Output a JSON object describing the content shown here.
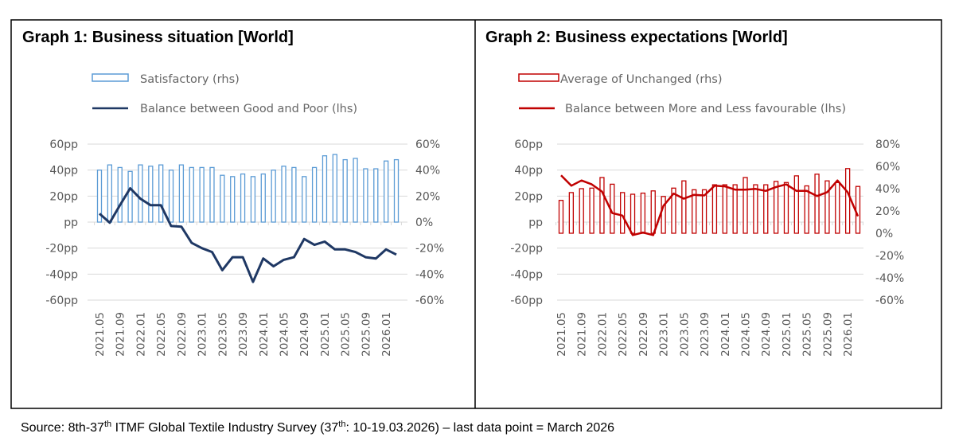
{
  "source": {
    "prefix": "Source: 8th-37",
    "sup1": "th",
    "middle": " ITMF Global Textile Industry Survey (37",
    "sup2": "th",
    "suffix": ": 10-19.03.2026) – last data point = March 2026"
  },
  "chart_data": [
    {
      "type": "bar+line",
      "title": "Graph 1: Business situation [World]",
      "legend_placement": "top",
      "x_tick_labels": [
        "2021.05",
        "2021.09",
        "2022.01",
        "2022.05",
        "2022.09",
        "2023.01",
        "2023.05",
        "2023.09",
        "2024.01",
        "2024.05",
        "2024.09",
        "2025.01",
        "2025.05",
        "2025.09",
        "2026.01"
      ],
      "left_axis": {
        "ylim": [
          -60,
          60
        ],
        "ticks": [
          "60pp",
          "40pp",
          "20pp",
          "pp",
          "-20pp",
          "-40pp",
          "-60pp"
        ],
        "tick_values": [
          60,
          40,
          20,
          0,
          -20,
          -40,
          -60
        ]
      },
      "right_axis": {
        "ylim": [
          -60,
          60
        ],
        "ticks": [
          "60%",
          "40%",
          "20%",
          "0%",
          "-20%",
          "-40%",
          "-60%"
        ],
        "tick_values": [
          60,
          40,
          20,
          0,
          -20,
          -40,
          -60
        ]
      },
      "grid": true,
      "series": [
        {
          "name": "Satisfactory (rhs)",
          "kind": "bar",
          "axis": "right",
          "color": "#5b9bd5",
          "values": [
            40,
            44,
            42,
            39,
            44,
            43,
            44,
            40,
            44,
            42,
            42,
            42,
            36,
            35,
            37,
            35,
            37,
            40,
            43,
            42,
            35,
            42,
            51,
            52,
            48,
            49,
            41,
            41,
            47,
            48
          ]
        },
        {
          "name": "Balance between Good and Poor (lhs)",
          "kind": "line",
          "axis": "left",
          "color": "#1f3864",
          "values": [
            6.5,
            -0.5,
            13,
            26,
            18,
            13,
            13,
            -3,
            -3.5,
            -16,
            -20,
            -23,
            -37,
            -27,
            -27,
            -46,
            -28,
            -34,
            -29,
            -27,
            -13,
            -17.5,
            -15,
            -21,
            -21,
            -23,
            -27,
            -28,
            -21,
            -25
          ]
        }
      ]
    },
    {
      "type": "bar+line",
      "title": "Graph 2: Business expectations [World]",
      "legend_placement": "top",
      "x_tick_labels": [
        "2021.05",
        "2021.09",
        "2022.01",
        "2022.05",
        "2022.09",
        "2023.01",
        "2023.05",
        "2023.09",
        "2024.01",
        "2024.05",
        "2024.09",
        "2025.01",
        "2025.05",
        "2025.09",
        "2026.01"
      ],
      "left_axis": {
        "ylim": [
          -60,
          60
        ],
        "ticks": [
          "60pp",
          "40pp",
          "20pp",
          "pp",
          "-20pp",
          "-40pp",
          "-60pp"
        ],
        "tick_values": [
          60,
          40,
          20,
          0,
          -20,
          -40,
          -60
        ]
      },
      "right_axis": {
        "ylim": [
          -60,
          80
        ],
        "ticks": [
          "80%",
          "60%",
          "40%",
          "20%",
          "0%",
          "-20%",
          "-40%",
          "-60%"
        ],
        "tick_values": [
          80,
          60,
          40,
          20,
          0,
          -20,
          -40,
          -60
        ]
      },
      "grid": true,
      "series": [
        {
          "name": "Average of Unchanged (rhs)",
          "kind": "bar",
          "axis": "right",
          "color": "#c00000",
          "values": [
            29.5,
            36.5,
            40,
            40.5,
            50,
            44,
            36.5,
            35,
            36,
            38,
            33,
            40.5,
            47,
            39,
            39,
            43.5,
            43.5,
            43.5,
            50,
            43.5,
            43.5,
            46.5,
            45.5,
            51.5,
            42.5,
            53,
            47,
            45.5,
            58,
            42
          ]
        },
        {
          "name": "Balance between More and Less favourable (lhs)",
          "kind": "line",
          "axis": "left",
          "color": "#c00000",
          "values": [
            36,
            28,
            32,
            29,
            23.5,
            7,
            5,
            -10,
            -8,
            -10,
            12.5,
            22,
            18,
            21,
            20.5,
            28,
            27.5,
            25,
            25,
            25.5,
            24,
            27,
            29,
            24,
            24,
            20,
            23,
            32,
            23,
            4.5
          ]
        }
      ]
    }
  ]
}
